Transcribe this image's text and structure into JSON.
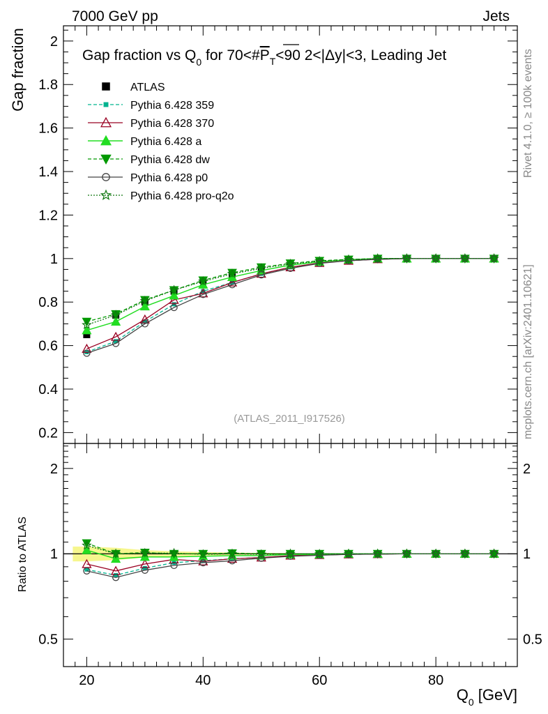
{
  "header": {
    "left": "7000 GeV pp",
    "right": "Jets"
  },
  "side_labels": {
    "top": "Rivet 4.1.0, ≥ 100k events",
    "bottom": "mcplots.cern.ch [arXiv:2401.10621]"
  },
  "colors": {
    "ATLAS": "#000000",
    "Pythia 6.428 359": "#00b38f",
    "Pythia 6.428 370": "#990022",
    "Pythia 6.428 a": "#22dd22",
    "Pythia 6.428 dw": "#009900",
    "Pythia 6.428 p0": "#444444",
    "Pythia 6.428 pro-q2o": "#117711",
    "band": "#f5f57a"
  },
  "chart_data": [
    {
      "type": "line",
      "title": "Gap fraction vs Q0 for 70<#PT<90  2<|Δy|<3, Leading Jet",
      "title_parts": {
        "a": "Gap fraction vs Q",
        "sub": "0",
        "b": " for 70<#",
        "c": "P",
        "d": "T",
        "e": "<90  2<|Δy|<3, Leading Jet"
      },
      "ylabel": "Gap fraction",
      "xlabel": "",
      "watermark": "(ATLAS_2011_I917526)",
      "xlim": [
        16,
        94
      ],
      "ylim": [
        0.15,
        2.07
      ],
      "yticks": [
        0.2,
        0.4,
        0.6,
        0.8,
        1,
        1.2,
        1.4,
        1.6,
        1.8,
        2
      ],
      "ytick_labels": [
        "0.2",
        "0.4",
        "0.6",
        "0.8",
        "1",
        "1.2",
        "1.4",
        "1.6",
        "1.8",
        "2"
      ],
      "x": [
        20,
        25,
        30,
        35,
        40,
        45,
        50,
        55,
        60,
        65,
        70,
        75,
        80,
        85,
        90
      ],
      "series": [
        {
          "name": "ATLAS",
          "values": [
            0.65,
            0.74,
            0.8,
            0.85,
            0.9,
            0.93,
            0.96,
            0.975,
            0.99,
            0.995,
            1.0,
            1.0,
            1.0,
            1.0,
            1.0
          ]
        },
        {
          "name": "Pythia 6.428 359",
          "values": [
            0.57,
            0.62,
            0.71,
            0.79,
            0.85,
            0.89,
            0.93,
            0.96,
            0.98,
            0.99,
            0.997,
            1.0,
            1.0,
            1.0,
            1.0
          ]
        },
        {
          "name": "Pythia 6.428 370",
          "values": [
            0.585,
            0.64,
            0.72,
            0.81,
            0.84,
            0.89,
            0.93,
            0.96,
            0.98,
            0.99,
            0.997,
            1.0,
            1.0,
            1.0,
            1.0
          ]
        },
        {
          "name": "Pythia 6.428 a",
          "values": [
            0.67,
            0.71,
            0.78,
            0.83,
            0.88,
            0.915,
            0.945,
            0.97,
            0.985,
            0.995,
            1.0,
            1.0,
            1.0,
            1.0,
            1.0
          ]
        },
        {
          "name": "Pythia 6.428 dw",
          "values": [
            0.71,
            0.745,
            0.81,
            0.855,
            0.9,
            0.935,
            0.96,
            0.978,
            0.99,
            0.996,
            1.0,
            1.0,
            1.0,
            1.0,
            1.0
          ]
        },
        {
          "name": "Pythia 6.428 p0",
          "values": [
            0.565,
            0.61,
            0.7,
            0.775,
            0.835,
            0.88,
            0.925,
            0.955,
            0.978,
            0.99,
            0.997,
            1.0,
            1.0,
            1.0,
            1.0
          ]
        },
        {
          "name": "Pythia 6.428 pro-q2o",
          "values": [
            0.695,
            0.74,
            0.805,
            0.855,
            0.895,
            0.93,
            0.955,
            0.975,
            0.988,
            0.995,
            1.0,
            1.0,
            1.0,
            1.0,
            1.0
          ]
        }
      ],
      "legend": [
        "ATLAS",
        "Pythia 6.428 359",
        "Pythia 6.428 370",
        "Pythia 6.428 a",
        "Pythia 6.428 dw",
        "Pythia 6.428 p0",
        "Pythia 6.428 pro-q2o"
      ],
      "legend_position": "top-left"
    },
    {
      "type": "line",
      "title": "",
      "ylabel": "Ratio to ATLAS",
      "xlabel": "Q0 [GeV]",
      "xlabel_parts": {
        "a": "Q",
        "sub": "0",
        "b": " [GeV]"
      },
      "yscale": "log",
      "xlim": [
        16,
        94
      ],
      "ylim": [
        0.4,
        2.45
      ],
      "yticks": [
        0.5,
        1,
        2
      ],
      "ytick_labels": [
        "0.5",
        "1",
        "2"
      ],
      "xticks": [
        20,
        40,
        60,
        80
      ],
      "xtick_labels": [
        "20",
        "40",
        "60",
        "80"
      ],
      "x": [
        20,
        25,
        30,
        35,
        40,
        45,
        50,
        55,
        60,
        65,
        70,
        75,
        80,
        85,
        90
      ],
      "band": {
        "lower": [
          0.94,
          0.95,
          0.97,
          0.98,
          0.985,
          0.99,
          0.993,
          0.995,
          0.997,
          0.998,
          1.0,
          1.0,
          1.0,
          1.0,
          1.0
        ],
        "upper": [
          1.06,
          1.05,
          1.03,
          1.02,
          1.015,
          1.01,
          1.007,
          1.005,
          1.003,
          1.002,
          1.0,
          1.0,
          1.0,
          1.0,
          1.0
        ]
      },
      "series": [
        {
          "name": "ATLAS",
          "values": [
            1,
            1,
            1,
            1,
            1,
            1,
            1,
            1,
            1,
            1,
            1,
            1,
            1,
            1,
            1
          ]
        },
        {
          "name": "Pythia 6.428 359",
          "values": [
            0.88,
            0.84,
            0.89,
            0.93,
            0.945,
            0.96,
            0.97,
            0.985,
            0.99,
            0.995,
            0.997,
            1.0,
            1.0,
            1.0,
            1.0
          ]
        },
        {
          "name": "Pythia 6.428 370",
          "values": [
            0.92,
            0.87,
            0.92,
            0.955,
            0.94,
            0.96,
            0.97,
            0.985,
            0.99,
            0.995,
            0.997,
            1.0,
            1.0,
            1.0,
            1.0
          ]
        },
        {
          "name": "Pythia 6.428 a",
          "values": [
            1.03,
            0.96,
            0.975,
            0.975,
            0.98,
            0.985,
            0.985,
            0.995,
            0.995,
            1.0,
            1.0,
            1.0,
            1.0,
            1.0,
            1.0
          ]
        },
        {
          "name": "Pythia 6.428 dw",
          "values": [
            1.09,
            1.0,
            1.01,
            1.0,
            1.0,
            1.005,
            1.0,
            1.0,
            1.0,
            1.0,
            1.0,
            1.0,
            1.0,
            1.0,
            1.0
          ]
        },
        {
          "name": "Pythia 6.428 p0",
          "values": [
            0.87,
            0.825,
            0.875,
            0.91,
            0.93,
            0.945,
            0.965,
            0.98,
            0.988,
            0.995,
            0.997,
            1.0,
            1.0,
            1.0,
            1.0
          ]
        },
        {
          "name": "Pythia 6.428 pro-q2o",
          "values": [
            1.07,
            1.0,
            1.005,
            1.005,
            0.995,
            1.0,
            0.995,
            1.0,
            0.998,
            1.0,
            1.0,
            1.0,
            1.0,
            1.0,
            1.0
          ]
        }
      ]
    }
  ]
}
